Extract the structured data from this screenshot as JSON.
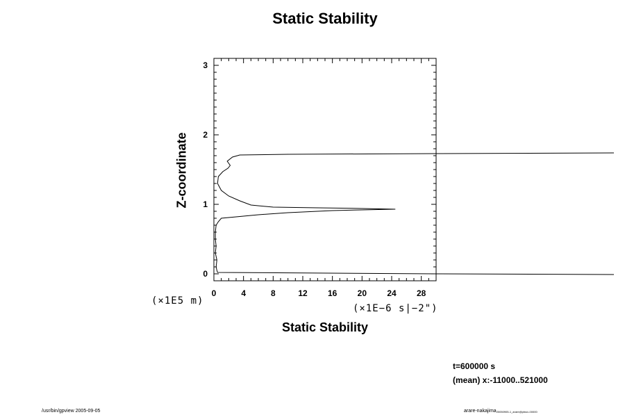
{
  "chart_data": {
    "type": "line",
    "title": "Static Stability",
    "xlabel": "Static Stability",
    "ylabel": "Z-coordinate",
    "x_units": "(×1E−6 s|−2\")",
    "y_units": "(×1E5 m)",
    "xlim": [
      0,
      30
    ],
    "ylim": [
      -0.1,
      3.1
    ],
    "x_ticks": [
      "0",
      "4",
      "8",
      "12",
      "16",
      "20",
      "24",
      "28"
    ],
    "y_ticks": [
      "0",
      "1",
      "2",
      "3"
    ],
    "grid": false,
    "series": [
      {
        "points": [
          [
            54,
            -0.01
          ],
          [
            30,
            0.0
          ],
          [
            0.5,
            0.02
          ],
          [
            0.4,
            0.05
          ],
          [
            0.3,
            0.1
          ],
          [
            0.4,
            0.2
          ],
          [
            0.2,
            0.3
          ],
          [
            0.3,
            0.4
          ],
          [
            0.2,
            0.5
          ],
          [
            0.2,
            0.6
          ],
          [
            0.3,
            0.7
          ],
          [
            0.6,
            0.75
          ],
          [
            1.0,
            0.8
          ],
          [
            3.0,
            0.82
          ],
          [
            6.0,
            0.85
          ],
          [
            10.0,
            0.88
          ],
          [
            16.0,
            0.91
          ],
          [
            20.0,
            0.92
          ],
          [
            24.5,
            0.93
          ],
          [
            20.0,
            0.94
          ],
          [
            14.0,
            0.95
          ],
          [
            8.0,
            0.96
          ],
          [
            5.0,
            0.99
          ],
          [
            3.5,
            1.05
          ],
          [
            2.0,
            1.12
          ],
          [
            1.0,
            1.2
          ],
          [
            0.5,
            1.3
          ],
          [
            0.6,
            1.4
          ],
          [
            1.2,
            1.47
          ],
          [
            1.9,
            1.52
          ],
          [
            2.2,
            1.56
          ],
          [
            1.8,
            1.62
          ],
          [
            2.5,
            1.68
          ],
          [
            3.5,
            1.71
          ],
          [
            10.0,
            1.72
          ],
          [
            30.0,
            1.73
          ],
          [
            54,
            1.74
          ]
        ]
      }
    ]
  },
  "info": {
    "time": "t=600000 s",
    "mean": "(mean) x:-11000..521000"
  },
  "footer": {
    "left": "/usr/bin/gpview 2005-09-05",
    "right_main": "arare-nakajima",
    "right_sub": "20050905-1_arare@pbs/c-00000"
  }
}
